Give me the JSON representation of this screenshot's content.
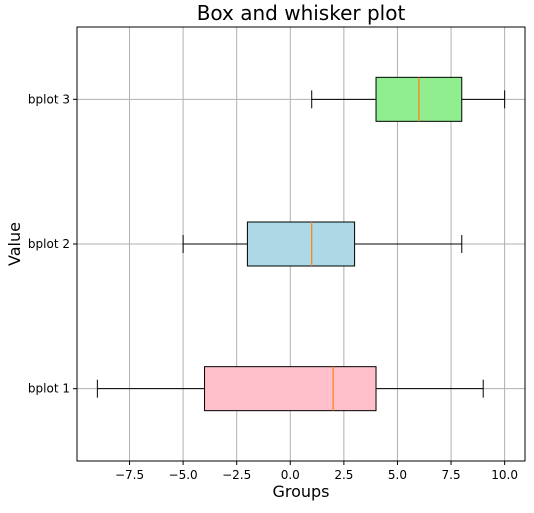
{
  "chart_data": {
    "type": "box",
    "orientation": "horizontal",
    "title": "Box and whisker plot",
    "xlabel": "Groups",
    "ylabel": "Value",
    "xlim": [
      -9.95,
      10.95
    ],
    "x_ticks": [
      -7.5,
      -5.0,
      -2.5,
      0.0,
      2.5,
      5.0,
      7.5,
      10.0
    ],
    "x_tick_labels": [
      "−7.5",
      "−5.0",
      "−2.5",
      "0.0",
      "2.5",
      "5.0",
      "7.5",
      "10.0"
    ],
    "grid": true,
    "categories": [
      "bplot 1",
      "bplot 2",
      "bplot 3"
    ],
    "series": [
      {
        "name": "bplot 1",
        "whislo": -9,
        "q1": -4,
        "median": 2,
        "q3": 4,
        "whishi": 9,
        "color": "#ffc0cb"
      },
      {
        "name": "bplot 2",
        "whislo": -5,
        "q1": -2,
        "median": 1,
        "q3": 3,
        "whishi": 8,
        "color": "#add8e6"
      },
      {
        "name": "bplot 3",
        "whislo": 1,
        "q1": 4,
        "median": 6,
        "q3": 8,
        "whishi": 10,
        "color": "#90ee90"
      }
    ],
    "median_color": "#ff7f0e",
    "grid_color": "#b0b0b0"
  }
}
